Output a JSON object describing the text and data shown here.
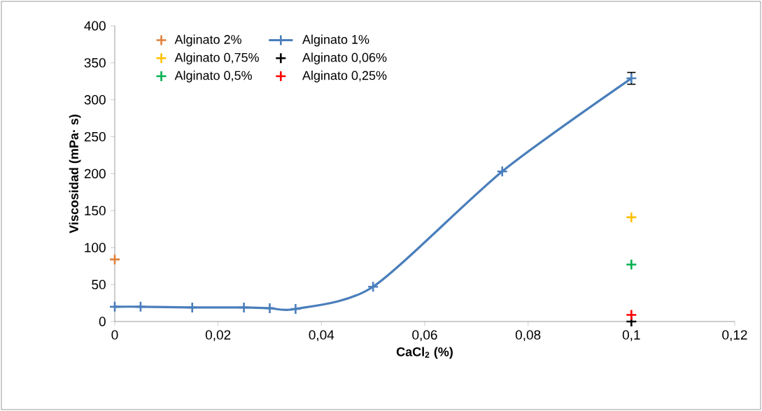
{
  "chart_data": {
    "type": "scatter",
    "xlabel": "CaCl$_{2}$ (%)",
    "ylabel": "Viscosidad (mPa· s)",
    "xlim": [
      0,
      0.12
    ],
    "ylim": [
      0,
      400
    ],
    "xticks": [
      0,
      {
        "value": 0.02,
        "label": "0,02"
      },
      {
        "value": 0.04,
        "label": "0,04"
      },
      {
        "value": 0.06,
        "label": "0,06"
      },
      {
        "value": 0.08,
        "label": "0,08"
      },
      {
        "value": 0.1,
        "label": "0,1"
      },
      {
        "value": 0.12,
        "label": "0,12"
      }
    ],
    "yticks": [
      0,
      50,
      100,
      150,
      200,
      250,
      300,
      350,
      400
    ],
    "grid": false,
    "legend": "top left",
    "marker": "cross",
    "series": [
      {
        "name": "Alginato 2%",
        "color": "#e0803a",
        "x": [
          0
        ],
        "values": [
          84
        ]
      },
      {
        "name": "Alginato 1%",
        "type": "line",
        "color": "#4a7ebb",
        "x": [
          0,
          0.005,
          0.015,
          0.025,
          0.03,
          0.035,
          0.05,
          0.075,
          0.1
        ],
        "values": [
          20,
          20,
          19,
          19,
          18,
          17,
          47,
          203,
          329
        ],
        "errors": [
          null,
          null,
          null,
          null,
          null,
          null,
          null,
          null,
          8
        ]
      },
      {
        "name": "Alginato 0,75%",
        "color": "#ffc000",
        "x": [
          0.1
        ],
        "values": [
          141
        ]
      },
      {
        "name": "Alginato 0,06%",
        "color": "#000000",
        "x": [
          0.1
        ],
        "values": [
          0
        ]
      },
      {
        "name": "Alginato 0,5%",
        "color": "#00b050",
        "x": [
          0.1
        ],
        "values": [
          77
        ]
      },
      {
        "name": "Alginato 0,25%",
        "color": "#ff0000",
        "x": [
          0.1
        ],
        "values": [
          9
        ]
      }
    ]
  }
}
